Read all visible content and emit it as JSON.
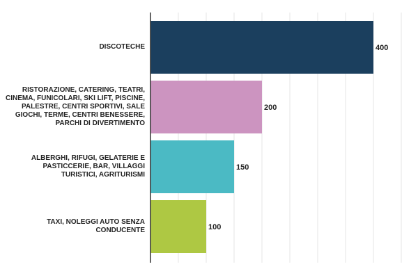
{
  "chart_data": {
    "type": "bar",
    "orientation": "horizontal",
    "categories": [
      "DISCOTECHE",
      "RISTORAZIONE, CATERING, TEATRI, CINEMA, FUNICOLARI, SKI LIFT, PISCINE, PALESTRE, CENTRI SPORTIVI, SALE GIOCHI, TERME, CENTRI BENESSERE, PARCHI DI DIVERTIMENTO",
      "ALBERGHI, RIFUGI, GELATERIE E PASTICCERIE, BAR, VILLAGGI TURISTICI, AGRITURISMI",
      "TAXI, NOLEGGI AUTO SENZA CONDUCENTE"
    ],
    "values": [
      400,
      200,
      150,
      100
    ],
    "value_labels": [
      "400",
      "200",
      "150",
      "100"
    ],
    "colors": [
      "#1b3f5e",
      "#cc94c0",
      "#4bbac4",
      "#aec843"
    ],
    "xlim": [
      0,
      450
    ],
    "grid_step": 50,
    "grid": true,
    "legend": "none",
    "title": "",
    "xlabel": "",
    "ylabel": ""
  }
}
